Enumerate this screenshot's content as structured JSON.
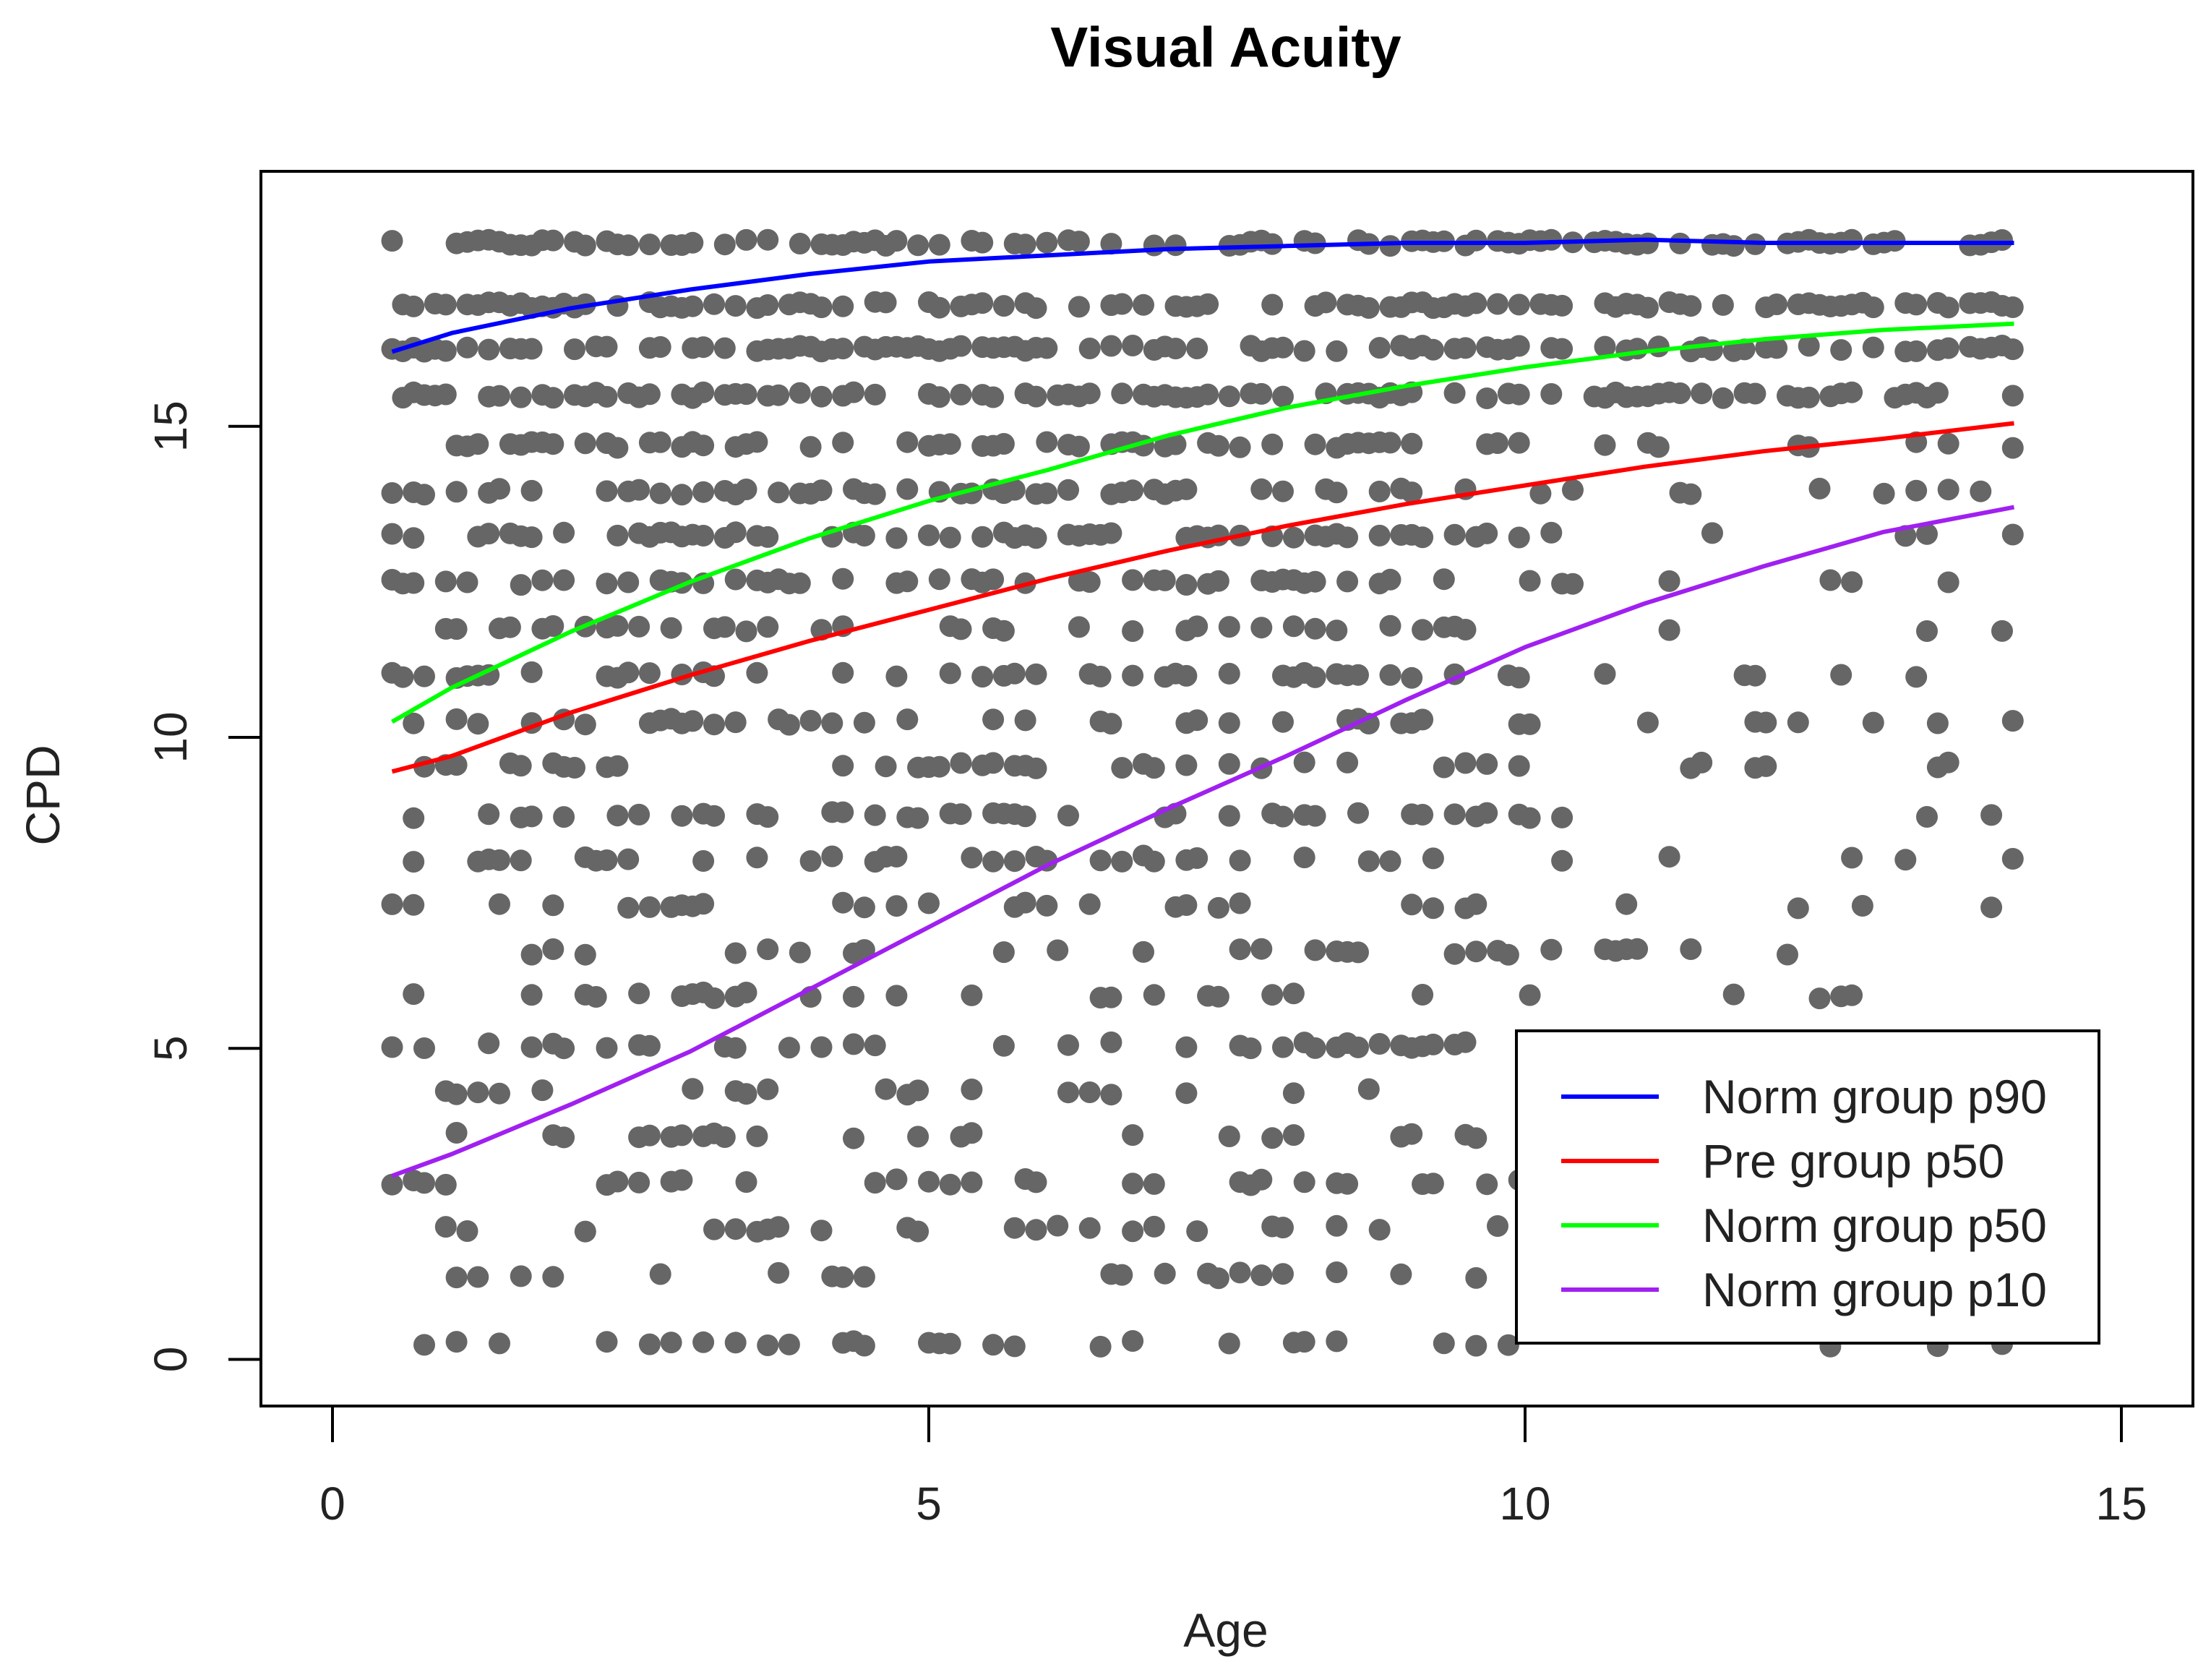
{
  "chart_data": {
    "type": "scatter",
    "title": "Visual Acuity",
    "xlabel": "Age",
    "ylabel": "CPD",
    "xlim": [
      -0.6,
      15.6
    ],
    "ylim": [
      -0.75,
      19.1
    ],
    "x_ticks": [
      0,
      5,
      10,
      15
    ],
    "x_tick_labels": [
      "0",
      "5",
      "10",
      "15"
    ],
    "y_ticks": [
      0,
      5,
      10,
      15
    ],
    "y_tick_labels": [
      "0",
      "5",
      "10",
      "15"
    ],
    "grid": false,
    "legend_position": "bottom-right",
    "colors": {
      "points": "#666666",
      "Norm group p90": "#0000ff",
      "Pre group p50": "#ff0000",
      "Norm group p50": "#00ff00",
      "Norm group p10": "#a020f0"
    },
    "point_levels": [
      0.25,
      1.35,
      2.1,
      2.85,
      3.6,
      4.3,
      5.05,
      5.85,
      6.55,
      7.3,
      8.05,
      8.75,
      9.55,
      10.25,
      11.0,
      11.75,
      12.5,
      13.25,
      13.95,
      14.7,
      15.5,
      16.25,
      16.95,
      17.95
    ],
    "series": [
      {
        "name": "Norm group p90",
        "x": [
          0.5,
          1,
          2,
          3,
          4,
          5,
          6,
          7,
          8,
          9,
          10,
          11,
          12,
          13,
          14.1
        ],
        "y": [
          16.2,
          16.5,
          16.9,
          17.2,
          17.45,
          17.65,
          17.75,
          17.85,
          17.9,
          17.95,
          17.95,
          18.0,
          17.95,
          17.95,
          17.95
        ]
      },
      {
        "name": "Pre group p50",
        "x": [
          0.5,
          1,
          2,
          3,
          4,
          5,
          6,
          7,
          8,
          9,
          10,
          11,
          12,
          13,
          14.1
        ],
        "y": [
          9.45,
          9.7,
          10.4,
          11.0,
          11.55,
          12.05,
          12.55,
          13.0,
          13.4,
          13.75,
          14.05,
          14.35,
          14.6,
          14.8,
          15.05
        ]
      },
      {
        "name": "Norm group p50",
        "x": [
          0.5,
          1,
          2,
          3,
          4,
          5,
          6,
          7,
          8,
          9,
          10,
          11,
          12,
          13,
          14.1
        ],
        "y": [
          10.25,
          10.8,
          11.7,
          12.5,
          13.2,
          13.8,
          14.3,
          14.85,
          15.3,
          15.65,
          15.95,
          16.2,
          16.4,
          16.55,
          16.65
        ]
      },
      {
        "name": "Norm group p10",
        "x": [
          0.5,
          1,
          2,
          3,
          4,
          5,
          6,
          7,
          8,
          9,
          10,
          11,
          12,
          13,
          14.1
        ],
        "y": [
          2.95,
          3.3,
          4.1,
          4.95,
          5.95,
          6.95,
          7.95,
          8.85,
          9.7,
          10.6,
          11.45,
          12.15,
          12.75,
          13.3,
          13.7
        ]
      }
    ]
  }
}
